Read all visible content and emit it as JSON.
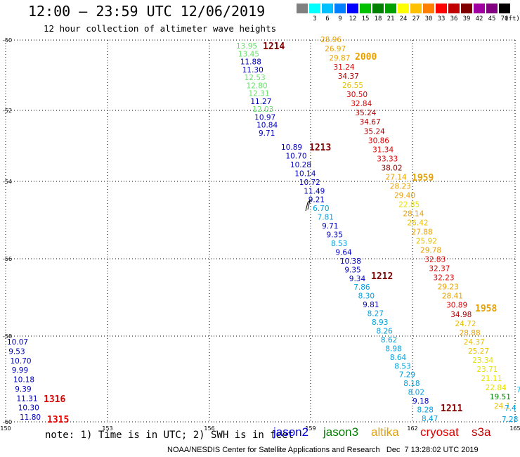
{
  "header": {
    "title": "12:00 – 23:59 UTC 12/06/2019",
    "subtitle": "12 hour collection of altimeter wave heights"
  },
  "legend": {
    "unit": "(ft)",
    "swatches": [
      {
        "label": "",
        "color": "#808080"
      },
      {
        "label": "3",
        "color": "#00ffff"
      },
      {
        "label": "6",
        "color": "#00c0ff"
      },
      {
        "label": "9",
        "color": "#0080ff"
      },
      {
        "label": "12",
        "color": "#0000ff"
      },
      {
        "label": "15",
        "color": "#00c000"
      },
      {
        "label": "18",
        "color": "#008000"
      },
      {
        "label": "21",
        "color": "#00a000"
      },
      {
        "label": "24",
        "color": "#ffff00"
      },
      {
        "label": "27",
        "color": "#ffc000"
      },
      {
        "label": "30",
        "color": "#ff8000"
      },
      {
        "label": "33",
        "color": "#ff0000"
      },
      {
        "label": "36",
        "color": "#c00000"
      },
      {
        "label": "39",
        "color": "#800000"
      },
      {
        "label": "42",
        "color": "#a000a0"
      },
      {
        "label": "45",
        "color": "#800080"
      },
      {
        "label": "70",
        "color": "#000000"
      }
    ]
  },
  "axes": {
    "lat_ticks": [
      "-50",
      "-52",
      "-54",
      "-56",
      "-58",
      "-60"
    ],
    "lon_ticks": [
      "150",
      "153",
      "156",
      "159",
      "162",
      "165"
    ]
  },
  "tracks": {
    "jason3_left": [
      {
        "v": "13.95",
        "c": "#66e066"
      },
      {
        "v": "13.45",
        "c": "#66e066"
      },
      {
        "v": "11.88",
        "c": "#0000c0"
      },
      {
        "v": "11.30",
        "c": "#0000c0"
      },
      {
        "v": "12.53",
        "c": "#66e066"
      },
      {
        "v": "12.80",
        "c": "#66e066"
      },
      {
        "v": "12.31",
        "c": "#66e066"
      },
      {
        "v": "11.27",
        "c": "#0000c0"
      },
      {
        "v": "12.03",
        "c": "#66e066"
      },
      {
        "v": "10.97",
        "c": "#0000c0"
      },
      {
        "v": "10.84",
        "c": "#0000c0"
      },
      {
        "v": "9.71",
        "c": "#0000c0"
      }
    ],
    "jason_mid": [
      {
        "v": "10.89",
        "c": "#0000c0"
      },
      {
        "v": "10.70",
        "c": "#0000c0"
      },
      {
        "v": "10.28",
        "c": "#0000c0"
      },
      {
        "v": "10.14",
        "c": "#0000c0"
      },
      {
        "v": "10.72",
        "c": "#0000c0"
      },
      {
        "v": "11.49",
        "c": "#0000c0"
      },
      {
        "v": "9.21",
        "c": "#0000c0"
      },
      {
        "v": "6.70",
        "c": "#00a0e0"
      },
      {
        "v": "7.81",
        "c": "#00a0e0"
      },
      {
        "v": "9.71",
        "c": "#0000c0"
      },
      {
        "v": "9.35",
        "c": "#0000c0"
      },
      {
        "v": "8.53",
        "c": "#00a0e0"
      },
      {
        "v": "9.64",
        "c": "#0000c0"
      },
      {
        "v": "10.38",
        "c": "#0000c0"
      },
      {
        "v": "9.35",
        "c": "#0000c0"
      },
      {
        "v": "9.34",
        "c": "#0000c0"
      },
      {
        "v": "7.86",
        "c": "#00a0e0"
      },
      {
        "v": "8.30",
        "c": "#00a0e0"
      },
      {
        "v": "9.81",
        "c": "#0000c0"
      },
      {
        "v": "8.27",
        "c": "#00a0e0"
      },
      {
        "v": "8.93",
        "c": "#00a0e0"
      },
      {
        "v": "8.26",
        "c": "#00a0e0"
      },
      {
        "v": "8.62",
        "c": "#00a0e0"
      },
      {
        "v": "8.98",
        "c": "#00a0e0"
      },
      {
        "v": "8.64",
        "c": "#00a0e0"
      },
      {
        "v": "8.53",
        "c": "#00a0e0"
      },
      {
        "v": "7.29",
        "c": "#00a0e0"
      },
      {
        "v": "8.18",
        "c": "#00a0e0"
      },
      {
        "v": "8.02",
        "c": "#00a0e0"
      },
      {
        "v": "9.18",
        "c": "#0000c0"
      },
      {
        "v": "8.28",
        "c": "#00a0e0"
      },
      {
        "v": "8.47",
        "c": "#00a0e0"
      }
    ],
    "altika": [
      {
        "v": "28.96",
        "c": "#e8a000"
      },
      {
        "v": "26.97",
        "c": "#e8a000"
      },
      {
        "v": "29.87",
        "c": "#e8a000"
      },
      {
        "v": "31.24",
        "c": "#e00000"
      },
      {
        "v": "34.37",
        "c": "#b00000"
      },
      {
        "v": "26.55",
        "c": "#e8c000"
      },
      {
        "v": "30.50",
        "c": "#e00000"
      },
      {
        "v": "32.84",
        "c": "#e00000"
      },
      {
        "v": "35.24",
        "c": "#b00000"
      },
      {
        "v": "34.67",
        "c": "#b00000"
      },
      {
        "v": "35.24",
        "c": "#b00000"
      },
      {
        "v": "30.86",
        "c": "#e00000"
      },
      {
        "v": "31.34",
        "c": "#e00000"
      },
      {
        "v": "33.33",
        "c": "#e00000"
      },
      {
        "v": "38.02",
        "c": "#800000"
      },
      {
        "v": "27.14",
        "c": "#e8a000"
      },
      {
        "v": "28.23",
        "c": "#e8a000"
      },
      {
        "v": "29.40",
        "c": "#e8a000"
      },
      {
        "v": "22.85",
        "c": "#e8e000"
      },
      {
        "v": "28.14",
        "c": "#e8a000"
      },
      {
        "v": "26.42",
        "c": "#e8c000"
      },
      {
        "v": "27.88",
        "c": "#e8a000"
      },
      {
        "v": "25.92",
        "c": "#e8c000"
      },
      {
        "v": "29.78",
        "c": "#e8a000"
      },
      {
        "v": "32.83",
        "c": "#e00000"
      },
      {
        "v": "32.37",
        "c": "#e00000"
      },
      {
        "v": "32.23",
        "c": "#e00000"
      },
      {
        "v": "29.23",
        "c": "#e8a000"
      },
      {
        "v": "28.41",
        "c": "#e8a000"
      },
      {
        "v": "30.89",
        "c": "#e00000"
      },
      {
        "v": "34.98",
        "c": "#b00000"
      },
      {
        "v": "24.72",
        "c": "#e8c000"
      },
      {
        "v": "28.88",
        "c": "#e8a000"
      },
      {
        "v": "24.37",
        "c": "#e8c000"
      },
      {
        "v": "25.27",
        "c": "#e8c000"
      },
      {
        "v": "23.34",
        "c": "#e8e000"
      },
      {
        "v": "23.71",
        "c": "#e8e000"
      },
      {
        "v": "21.11",
        "c": "#e8e000"
      },
      {
        "v": "22.84",
        "c": "#e8e000"
      },
      {
        "v": "19.51",
        "c": "#008000"
      },
      {
        "v": "24.1",
        "c": "#e8c000"
      }
    ],
    "left_edge": [
      {
        "v": "10.07",
        "c": "#0000c0"
      },
      {
        "v": "9.53",
        "c": "#0000c0"
      },
      {
        "v": "10.70",
        "c": "#0000c0"
      },
      {
        "v": "9.99",
        "c": "#0000c0"
      },
      {
        "v": "10.18",
        "c": "#0000c0"
      },
      {
        "v": "9.39",
        "c": "#0000c0"
      },
      {
        "v": "11.31",
        "c": "#0000c0"
      },
      {
        "v": "10.30",
        "c": "#0000c0"
      },
      {
        "v": "11.80",
        "c": "#0000c0"
      }
    ],
    "bottom_right": [
      {
        "v": "7.4",
        "c": "#00a0e0"
      },
      {
        "v": "7.28",
        "c": "#00a0e0"
      },
      {
        "v": "7",
        "c": "#00c0ff"
      }
    ]
  },
  "time_labels": [
    {
      "text": "1214",
      "c": "#800000"
    },
    {
      "text": "2000",
      "c": "#e8a000"
    },
    {
      "text": "1213",
      "c": "#800000"
    },
    {
      "text": "1959",
      "c": "#e8a000"
    },
    {
      "text": "1212",
      "c": "#800000"
    },
    {
      "text": "1958",
      "c": "#e8a000"
    },
    {
      "text": "1211",
      "c": "#800000"
    },
    {
      "text": "1316",
      "c": "#e00000"
    },
    {
      "text": "1315",
      "c": "#e00000"
    }
  ],
  "footer": {
    "note": "note: 1) Time is in UTC; 2) SWH is in feet",
    "satellites": [
      {
        "name": "jason2",
        "color": "#0000e0"
      },
      {
        "name": "jason3",
        "color": "#008000"
      },
      {
        "name": "altika",
        "color": "#e8a000"
      },
      {
        "name": "cryosat",
        "color": "#e00000"
      },
      {
        "name": "s3a",
        "color": "#c00000"
      }
    ],
    "credit": "NOAA/NESDIS Center for Satellite Applications and Research   Dec  7 13:28:02 UTC 2019"
  }
}
